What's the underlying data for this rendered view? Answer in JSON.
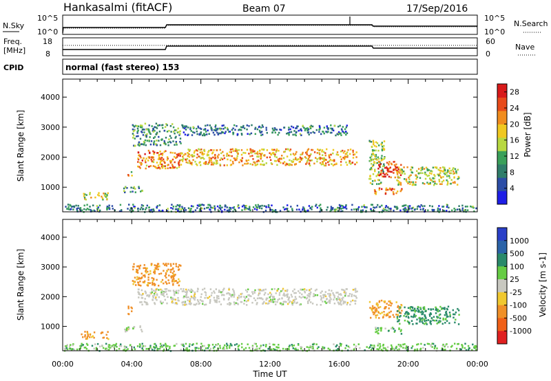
{
  "header": {
    "station": "Hankasalmi (fitACF)",
    "beam": "Beam 07",
    "date": "17/Sep/2016"
  },
  "strips": {
    "nsky_label": "N.Sky",
    "nsky_ticks": [
      "10^5",
      "10^0"
    ],
    "nsearch_label": "N.Search",
    "nsearch_ticks": [
      "10^5",
      "10^0"
    ],
    "freq_label": "Freq.",
    "freq_unit": "[MHz]",
    "freq_ticks": [
      "18",
      "8"
    ],
    "nave_label": "Nave",
    "nave_ticks": [
      "60",
      "0"
    ],
    "cpid_label": "CPID",
    "cpid_text": "normal (fast stereo) 153"
  },
  "colors": {
    "power": [
      "#1e1ee6",
      "#2c4da6",
      "#2f7d6a",
      "#3aa05a",
      "#b8d840",
      "#f0c820",
      "#f08c1e",
      "#e84a1a",
      "#d81a1a"
    ],
    "velocity": [
      "#2a3fc8",
      "#2b63a8",
      "#2a8a6a",
      "#66cc44",
      "#c8c8c0",
      "#f0c830",
      "#f09028",
      "#f06018",
      "#e02020"
    ]
  },
  "chart_data": [
    {
      "type": "heatmap",
      "quantity": "Power",
      "ylabel": "Slant Range [km]",
      "xlabel": "",
      "yticks": [
        "1000",
        "2000",
        "3000",
        "4000"
      ],
      "xticks": [
        "00:00",
        "04:00",
        "08:00",
        "12:00",
        "16:00",
        "20:00",
        "00:00"
      ],
      "x_range_hours": [
        0,
        24
      ],
      "y_range_km": [
        180,
        4600
      ],
      "colorbar_label": "Power [dB]",
      "colorbar_ticks": [
        "4",
        "8",
        "12",
        "16",
        "20",
        "24",
        "28"
      ],
      "colorbar_range": [
        0,
        30
      ],
      "scatter_regions": [
        {
          "t0": 0.0,
          "t1": 24.0,
          "r0": 200,
          "r1": 450,
          "value": 8
        },
        {
          "t0": 1.0,
          "t1": 2.6,
          "r0": 600,
          "r1": 850,
          "value": 16
        },
        {
          "t0": 3.5,
          "t1": 4.6,
          "r0": 850,
          "r1": 1050,
          "value": 10
        },
        {
          "t0": 3.7,
          "t1": 4.0,
          "r0": 1400,
          "r1": 1700,
          "value": 18
        },
        {
          "t0": 4.3,
          "t1": 6.8,
          "r0": 1650,
          "r1": 2250,
          "value": 22
        },
        {
          "t0": 6.8,
          "t1": 17.0,
          "r0": 1750,
          "r1": 2300,
          "value": 20
        },
        {
          "t0": 4.0,
          "t1": 6.8,
          "r0": 2400,
          "r1": 3150,
          "value": 10
        },
        {
          "t0": 6.8,
          "t1": 16.5,
          "r0": 2750,
          "r1": 3100,
          "value": 8
        },
        {
          "t0": 17.7,
          "t1": 18.6,
          "r0": 1100,
          "r1": 2600,
          "value": 14
        },
        {
          "t0": 18.2,
          "t1": 19.6,
          "r0": 1350,
          "r1": 1900,
          "value": 26
        },
        {
          "t0": 19.3,
          "t1": 22.9,
          "r0": 1100,
          "r1": 1700,
          "value": 16
        },
        {
          "t0": 18.0,
          "t1": 19.6,
          "r0": 780,
          "r1": 1000,
          "value": 24
        }
      ]
    },
    {
      "type": "heatmap",
      "quantity": "Velocity",
      "ylabel": "Slant Range [km]",
      "xlabel": "Time UT",
      "yticks": [
        "1000",
        "2000",
        "3000",
        "4000"
      ],
      "xticks": [
        "00:00",
        "04:00",
        "08:00",
        "12:00",
        "16:00",
        "20:00",
        "00:00"
      ],
      "x_range_hours": [
        0,
        24
      ],
      "y_range_km": [
        180,
        4600
      ],
      "colorbar_label": "Velocity [m s-1]",
      "colorbar_ticks": [
        "1000",
        "500",
        "100",
        "25",
        "-25",
        "-100",
        "-500",
        "-1000"
      ],
      "scatter_regions": [
        {
          "t0": 0.0,
          "t1": 24.0,
          "r0": 200,
          "r1": 450,
          "value": 60
        },
        {
          "t0": 1.0,
          "t1": 2.6,
          "r0": 600,
          "r1": 850,
          "value": -150
        },
        {
          "t0": 3.5,
          "t1": 4.6,
          "r0": 850,
          "r1": 1050,
          "value": 0
        },
        {
          "t0": 3.7,
          "t1": 4.0,
          "r0": 1400,
          "r1": 1700,
          "value": -300
        },
        {
          "t0": 4.3,
          "t1": 6.8,
          "r0": 1750,
          "r1": 2300,
          "value": 0
        },
        {
          "t0": 6.8,
          "t1": 17.0,
          "r0": 1750,
          "r1": 2300,
          "value": 0
        },
        {
          "t0": 4.0,
          "t1": 6.8,
          "r0": 2400,
          "r1": 3150,
          "value": -200
        },
        {
          "t0": 17.7,
          "t1": 19.6,
          "r0": 1300,
          "r1": 1900,
          "value": -150
        },
        {
          "t0": 19.3,
          "t1": 22.9,
          "r0": 1100,
          "r1": 1700,
          "value": 150
        },
        {
          "t0": 18.0,
          "t1": 19.6,
          "r0": 780,
          "r1": 1000,
          "value": 60
        }
      ]
    }
  ]
}
